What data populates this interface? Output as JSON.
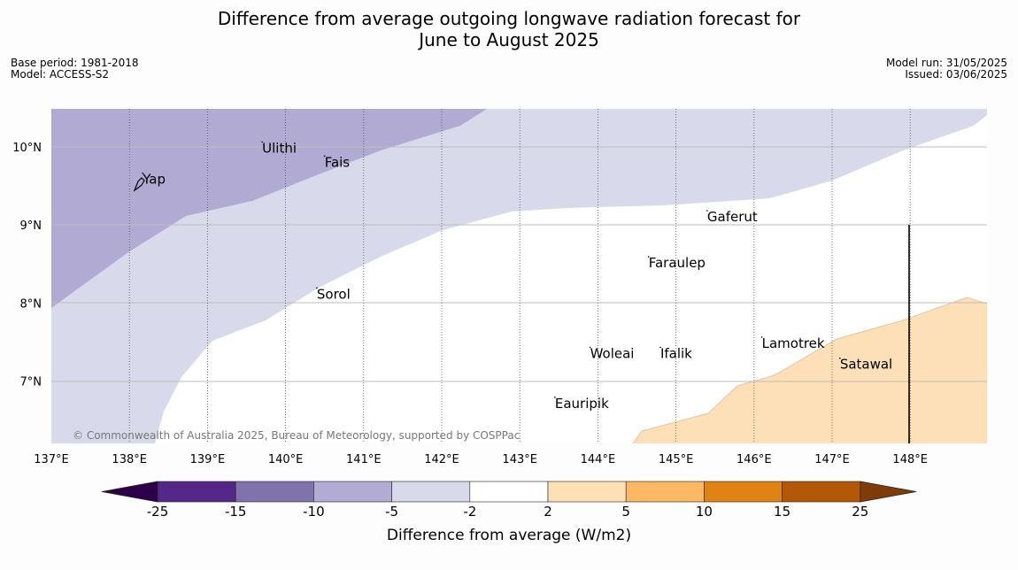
{
  "title": {
    "line1": "Difference from average outgoing longwave radiation forecast for",
    "line2": "June to August 2025"
  },
  "info": {
    "base_period": "Base period: 1981-2018",
    "model": "Model: ACCESS-S2",
    "model_run": "Model run: 31/05/2025",
    "issued": "Issued: 03/06/2025"
  },
  "map": {
    "lon_range": [
      137,
      149
    ],
    "lat_range": [
      6.2,
      10.5
    ],
    "lon_ticks": [
      "137°E",
      "138°E",
      "139°E",
      "140°E",
      "141°E",
      "142°E",
      "143°E",
      "144°E",
      "145°E",
      "146°E",
      "147°E",
      "148°E"
    ],
    "lat_ticks": [
      "10°N",
      "9°N",
      "8°N",
      "7°N"
    ],
    "places": [
      {
        "name": "Yap",
        "lon": 138.17,
        "lat": 9.55
      },
      {
        "name": "Ulithi",
        "lon": 139.7,
        "lat": 9.95
      },
      {
        "name": "Fais",
        "lon": 140.5,
        "lat": 9.77
      },
      {
        "name": "Gaferut",
        "lon": 145.4,
        "lat": 9.07
      },
      {
        "name": "Faraulep",
        "lon": 144.65,
        "lat": 8.48
      },
      {
        "name": "Sorol",
        "lon": 140.4,
        "lat": 8.08
      },
      {
        "name": "Woleai",
        "lon": 143.9,
        "lat": 7.32
      },
      {
        "name": "Ifalik",
        "lon": 144.8,
        "lat": 7.32
      },
      {
        "name": "Lamotrek",
        "lon": 146.1,
        "lat": 7.45
      },
      {
        "name": "Satawal",
        "lon": 147.1,
        "lat": 7.18
      },
      {
        "name": "Eauripik",
        "lon": 143.45,
        "lat": 6.68
      }
    ],
    "copyright": "© Commonwealth of Australia 2025, Bureau of Meteorology, supported by COSPPac"
  },
  "legend": {
    "label": "Difference from average (W/m2)",
    "ticks": [
      "-25",
      "-15",
      "-10",
      "-5",
      "-2",
      "2",
      "5",
      "10",
      "15",
      "25"
    ],
    "colors": [
      "#2d004b",
      "#542788",
      "#8073ac",
      "#b2abd2",
      "#d8daeb",
      "#ffffff",
      "#fee0b6",
      "#fdb863",
      "#e08214",
      "#b35806",
      "#7f3b08"
    ]
  }
}
